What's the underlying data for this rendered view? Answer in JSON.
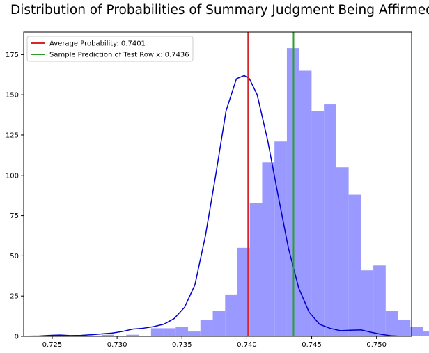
{
  "chart_data": {
    "type": "histogram",
    "title": "Distribution of Probabilities of Summary Judgment Being Affirmed",
    "xlabel": "",
    "ylabel": "",
    "xlim": [
      0.7228,
      0.7527
    ],
    "ylim": [
      0,
      189
    ],
    "grid": false,
    "legend_position": "top-left",
    "x_ticks": [
      0.725,
      0.73,
      0.735,
      0.74,
      0.745,
      0.75
    ],
    "x_tick_labels": [
      "0.725",
      "0.730",
      "0.735",
      "0.740",
      "0.745",
      "0.750"
    ],
    "y_ticks": [
      0,
      25,
      50,
      75,
      100,
      125,
      150,
      175
    ],
    "y_tick_labels": [
      "0",
      "25",
      "50",
      "75",
      "100",
      "125",
      "150",
      "175"
    ],
    "bar_color": "#9999ff",
    "kde_color": "#0000cc",
    "histogram": {
      "bin_start": 0.725,
      "bin_width": 0.000952,
      "counts": [
        1,
        0,
        0,
        0,
        1,
        0,
        1,
        0,
        5,
        5,
        6,
        3,
        10,
        16,
        26,
        55,
        83,
        108,
        121,
        179,
        165,
        140,
        144,
        105,
        88,
        41,
        44,
        16,
        10,
        6,
        3,
        7,
        3,
        5
      ]
    },
    "kde_curve": {
      "x": [
        0.7232,
        0.724,
        0.7248,
        0.7256,
        0.7264,
        0.7272,
        0.728,
        0.7288,
        0.7296,
        0.7304,
        0.7312,
        0.732,
        0.7328,
        0.7336,
        0.7344,
        0.7352,
        0.736,
        0.7368,
        0.7376,
        0.7384,
        0.7392,
        0.7398,
        0.7402,
        0.7408,
        0.7416,
        0.7424,
        0.7432,
        0.744,
        0.7448,
        0.7456,
        0.7464,
        0.7472,
        0.748,
        0.7488,
        0.7496,
        0.7504,
        0.7512,
        0.7517
      ],
      "y": [
        0.1,
        0.2,
        0.6,
        0.8,
        0.5,
        0.6,
        1.0,
        1.5,
        2.0,
        3.0,
        4.5,
        5.0,
        6.0,
        7.5,
        11.0,
        18.0,
        32.0,
        62.0,
        100.0,
        140.0,
        160.0,
        162.0,
        160.0,
        150.0,
        122.0,
        88.0,
        55.0,
        30.0,
        15.0,
        7.5,
        5.0,
        3.5,
        3.8,
        4.0,
        2.5,
        1.2,
        0.3,
        0.1
      ]
    },
    "vlines": [
      {
        "x": 0.7401,
        "color": "#d62728",
        "label": "Average Probability: 0.7401"
      },
      {
        "x": 0.7436,
        "color": "#2ca02c",
        "label": "Sample Prediction of Test Row x: 0.7436"
      }
    ]
  }
}
